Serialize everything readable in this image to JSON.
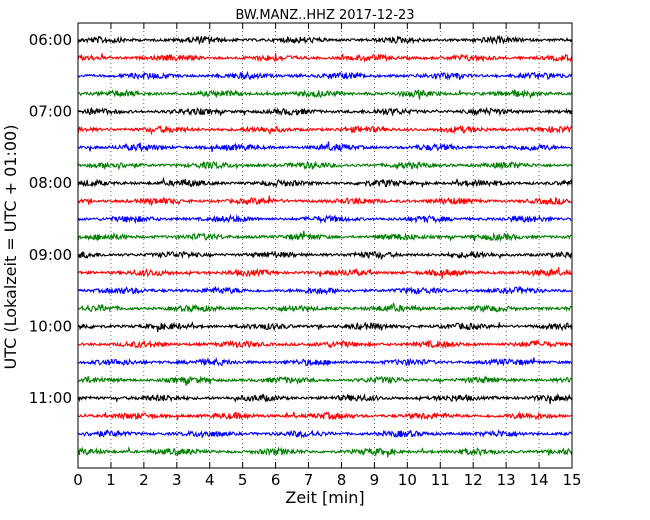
{
  "chart_data": {
    "type": "line",
    "title": "BW.MANZ..HHZ 2017-12-23",
    "xlabel": "Zeit  [min]",
    "ylabel": "UTC (Lokalzeit = UTC + 01:00)",
    "xlim": [
      0,
      15
    ],
    "x_ticks": [
      "0",
      "1",
      "2",
      "3",
      "4",
      "5",
      "6",
      "7",
      "8",
      "9",
      "10",
      "11",
      "12",
      "13",
      "14",
      "15"
    ],
    "y_ticks": [
      "06:00",
      "07:00",
      "08:00",
      "09:00",
      "10:00",
      "11:00"
    ],
    "grid": "vertical dotted",
    "trace_colors": [
      "#000000",
      "#ff0000",
      "#0000ff",
      "#008000"
    ],
    "traces": [
      {
        "start": "06:00"
      },
      {
        "start": "06:15"
      },
      {
        "start": "06:30"
      },
      {
        "start": "06:45"
      },
      {
        "start": "07:00"
      },
      {
        "start": "07:15"
      },
      {
        "start": "07:30"
      },
      {
        "start": "07:45"
      },
      {
        "start": "08:00"
      },
      {
        "start": "08:15"
      },
      {
        "start": "08:30"
      },
      {
        "start": "08:45"
      },
      {
        "start": "09:00"
      },
      {
        "start": "09:15"
      },
      {
        "start": "09:30"
      },
      {
        "start": "09:45"
      },
      {
        "start": "10:00"
      },
      {
        "start": "10:15"
      },
      {
        "start": "10:30"
      },
      {
        "start": "10:45"
      },
      {
        "start": "11:00"
      },
      {
        "start": "11:15"
      },
      {
        "start": "11:30"
      },
      {
        "start": "11:45"
      }
    ]
  }
}
